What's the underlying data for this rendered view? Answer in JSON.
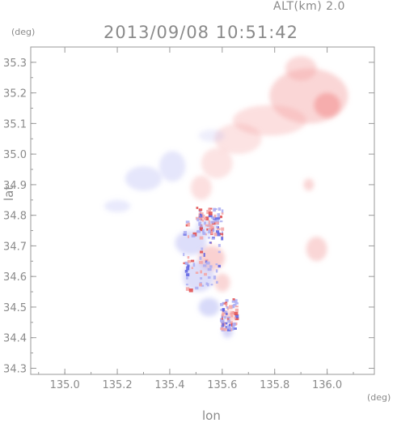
{
  "header": {
    "altitude_label": "ALT(km) 2.0",
    "timestamp": "2013/09/08 10:51:42"
  },
  "axes": {
    "y_unit": "(deg)",
    "x_unit": "(deg)",
    "ylabel": "lat",
    "xlabel": "lon"
  },
  "colors": {
    "positive": "#f5a3a3",
    "positive_strong": "#e04848",
    "negative": "#a9acf2",
    "negative_strong": "#5a5fe0",
    "axis": "#9a9a9a"
  },
  "chart_data": {
    "type": "heatmap",
    "xlabel": "lon",
    "ylabel": "lat",
    "xlim": [
      134.87,
      136.18
    ],
    "ylim": [
      34.28,
      35.35
    ],
    "xticks": [
      135.0,
      135.2,
      135.4,
      135.6,
      135.8,
      136.0
    ],
    "xtick_labels": [
      "135.0",
      "135.2",
      "135.4",
      "135.6",
      "135.8",
      "136.0"
    ],
    "yticks": [
      34.3,
      34.4,
      34.5,
      34.6,
      34.7,
      34.8,
      34.9,
      35.0,
      35.1,
      35.2,
      35.3
    ],
    "ytick_labels": [
      "34.3",
      "34.4",
      "34.5",
      "34.6",
      "34.7",
      "34.8",
      "34.9",
      "35.0",
      "35.1",
      "35.2",
      "35.3"
    ],
    "grid": false,
    "regions": [
      {
        "sign": "positive",
        "lon": 135.93,
        "lat": 35.19,
        "rlon": 0.15,
        "rlat": 0.09,
        "intensity": 0.45
      },
      {
        "sign": "positive",
        "lon": 136.0,
        "lat": 35.16,
        "rlon": 0.05,
        "rlat": 0.04,
        "intensity": 0.8
      },
      {
        "sign": "positive",
        "lon": 135.9,
        "lat": 35.28,
        "rlon": 0.06,
        "rlat": 0.04,
        "intensity": 0.4
      },
      {
        "sign": "positive",
        "lon": 135.78,
        "lat": 35.11,
        "rlon": 0.14,
        "rlat": 0.05,
        "intensity": 0.35
      },
      {
        "sign": "positive",
        "lon": 135.66,
        "lat": 35.05,
        "rlon": 0.09,
        "rlat": 0.05,
        "intensity": 0.3
      },
      {
        "sign": "positive",
        "lon": 135.58,
        "lat": 34.97,
        "rlon": 0.06,
        "rlat": 0.05,
        "intensity": 0.3
      },
      {
        "sign": "positive",
        "lon": 135.52,
        "lat": 34.89,
        "rlon": 0.04,
        "rlat": 0.04,
        "intensity": 0.35
      },
      {
        "sign": "positive",
        "lon": 135.96,
        "lat": 34.69,
        "rlon": 0.04,
        "rlat": 0.04,
        "intensity": 0.45
      },
      {
        "sign": "positive",
        "lon": 135.93,
        "lat": 34.9,
        "rlon": 0.02,
        "rlat": 0.02,
        "intensity": 0.45
      },
      {
        "sign": "positive",
        "lon": 135.56,
        "lat": 34.66,
        "rlon": 0.05,
        "rlat": 0.04,
        "intensity": 0.5
      },
      {
        "sign": "positive",
        "lon": 135.6,
        "lat": 34.58,
        "rlon": 0.03,
        "rlat": 0.03,
        "intensity": 0.45
      },
      {
        "sign": "positive",
        "lon": 135.63,
        "lat": 34.47,
        "rlon": 0.02,
        "rlat": 0.02,
        "intensity": 0.55
      },
      {
        "sign": "negative",
        "lon": 135.3,
        "lat": 34.92,
        "rlon": 0.07,
        "rlat": 0.04,
        "intensity": 0.3
      },
      {
        "sign": "negative",
        "lon": 135.41,
        "lat": 34.96,
        "rlon": 0.05,
        "rlat": 0.05,
        "intensity": 0.3
      },
      {
        "sign": "negative",
        "lon": 135.2,
        "lat": 34.83,
        "rlon": 0.05,
        "rlat": 0.02,
        "intensity": 0.25
      },
      {
        "sign": "negative",
        "lon": 135.48,
        "lat": 34.71,
        "rlon": 0.06,
        "rlat": 0.04,
        "intensity": 0.4
      },
      {
        "sign": "negative",
        "lon": 135.51,
        "lat": 34.6,
        "rlon": 0.06,
        "rlat": 0.05,
        "intensity": 0.4
      },
      {
        "sign": "negative",
        "lon": 135.55,
        "lat": 34.5,
        "rlon": 0.04,
        "rlat": 0.03,
        "intensity": 0.45
      },
      {
        "sign": "negative",
        "lon": 135.54,
        "lat": 34.76,
        "rlon": 0.04,
        "rlat": 0.03,
        "intensity": 0.35
      },
      {
        "sign": "negative",
        "lon": 135.62,
        "lat": 34.42,
        "rlon": 0.02,
        "rlat": 0.02,
        "intensity": 0.5
      },
      {
        "sign": "negative",
        "lon": 135.56,
        "lat": 35.06,
        "rlon": 0.05,
        "rlat": 0.02,
        "intensity": 0.2
      }
    ]
  }
}
